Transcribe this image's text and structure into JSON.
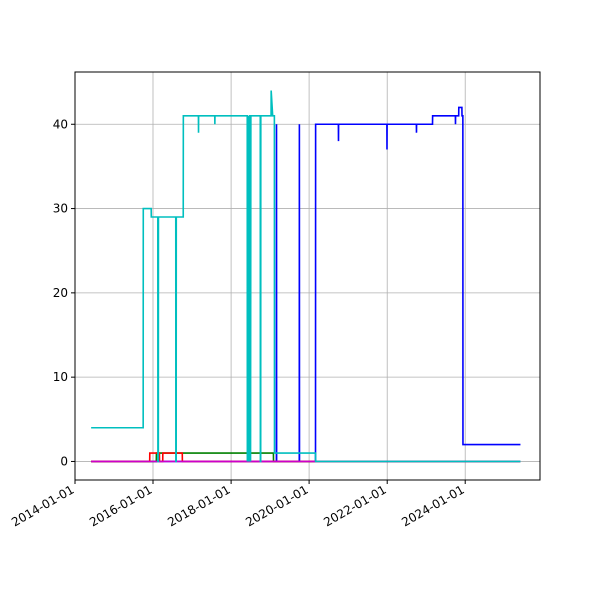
{
  "chart_data": {
    "type": "line",
    "title": "",
    "xlabel": "",
    "ylabel": "",
    "xlim": [
      "2014-01-01",
      "2025-12-01"
    ],
    "ylim": [
      -2.2,
      46.2
    ],
    "grid": true,
    "legend": "none",
    "x_ticks": [
      "2014-01-01",
      "2016-01-01",
      "2018-01-01",
      "2020-01-01",
      "2022-01-01",
      "2024-01-01"
    ],
    "y_ticks": [
      0,
      10,
      20,
      30,
      40
    ],
    "series": [
      {
        "color": "#0000ff",
        "points": [
          [
            "2014-06-01",
            0
          ],
          [
            "2019-03-01",
            0
          ],
          [
            "2019-03-02",
            40
          ],
          [
            "2019-03-03",
            0
          ],
          [
            "2019-10-01",
            0
          ],
          [
            "2019-10-02",
            40
          ],
          [
            "2019-10-03",
            0
          ],
          [
            "2020-03-01",
            0
          ],
          [
            "2020-03-02",
            40
          ],
          [
            "2020-10-01",
            40
          ],
          [
            "2020-10-02",
            38
          ],
          [
            "2020-10-03",
            40
          ],
          [
            "2021-12-29",
            40
          ],
          [
            "2021-12-30",
            37
          ],
          [
            "2021-12-31",
            40
          ],
          [
            "2022-10-01",
            40
          ],
          [
            "2022-10-02",
            39
          ],
          [
            "2022-10-03",
            40
          ],
          [
            "2023-03-01",
            40
          ],
          [
            "2023-03-02",
            41
          ],
          [
            "2023-10-01",
            41
          ],
          [
            "2023-10-02",
            40
          ],
          [
            "2023-10-03",
            41
          ],
          [
            "2023-11-01",
            41
          ],
          [
            "2023-11-02",
            42
          ],
          [
            "2023-12-01",
            42
          ],
          [
            "2023-12-02",
            41
          ],
          [
            "2023-12-10",
            41
          ],
          [
            "2023-12-11",
            2
          ],
          [
            "2025-06-01",
            2
          ]
        ]
      },
      {
        "color": "#008000",
        "points": [
          [
            "2014-06-01",
            0
          ],
          [
            "2016-02-01",
            0
          ],
          [
            "2016-02-02",
            1
          ],
          [
            "2019-02-01",
            1
          ],
          [
            "2019-02-02",
            0
          ],
          [
            "2025-06-01",
            0
          ]
        ]
      },
      {
        "color": "#ff0000",
        "points": [
          [
            "2014-06-01",
            0
          ],
          [
            "2015-12-01",
            0
          ],
          [
            "2015-12-02",
            1
          ],
          [
            "2016-03-01",
            1
          ],
          [
            "2016-03-02",
            0
          ],
          [
            "2016-04-01",
            0
          ],
          [
            "2016-04-02",
            1
          ],
          [
            "2016-10-01",
            1
          ],
          [
            "2016-10-02",
            0
          ],
          [
            "2025-06-01",
            0
          ]
        ]
      },
      {
        "color": "#cc00cc",
        "points": [
          [
            "2014-06-01",
            0
          ],
          [
            "2025-06-01",
            0
          ]
        ]
      },
      {
        "color": "#00bfbf",
        "points": [
          [
            "2014-06-01",
            4
          ],
          [
            "2015-10-01",
            4
          ],
          [
            "2015-10-02",
            30
          ],
          [
            "2015-12-15",
            30
          ],
          [
            "2015-12-16",
            29
          ],
          [
            "2016-02-15",
            29
          ],
          [
            "2016-02-16",
            0
          ],
          [
            "2016-02-20",
            0
          ],
          [
            "2016-02-21",
            29
          ],
          [
            "2016-08-01",
            29
          ],
          [
            "2016-08-02",
            0
          ],
          [
            "2016-08-05",
            0
          ],
          [
            "2016-08-06",
            29
          ],
          [
            "2016-10-10",
            29
          ],
          [
            "2016-10-11",
            41
          ],
          [
            "2017-03-01",
            41
          ],
          [
            "2017-03-02",
            39
          ],
          [
            "2017-03-03",
            41
          ],
          [
            "2017-08-01",
            41
          ],
          [
            "2017-08-02",
            40
          ],
          [
            "2017-08-03",
            41
          ],
          [
            "2018-06-01",
            41
          ],
          [
            "2018-06-02",
            0
          ],
          [
            "2018-06-05",
            41
          ],
          [
            "2018-06-08",
            0
          ],
          [
            "2018-06-11",
            41
          ],
          [
            "2018-06-14",
            0
          ],
          [
            "2018-06-17",
            41
          ],
          [
            "2018-06-20",
            0
          ],
          [
            "2018-06-23",
            41
          ],
          [
            "2018-07-01",
            41
          ],
          [
            "2018-07-02",
            0
          ],
          [
            "2018-07-05",
            41
          ],
          [
            "2018-10-01",
            41
          ],
          [
            "2018-10-02",
            0
          ],
          [
            "2018-10-05",
            0
          ],
          [
            "2018-10-06",
            41
          ],
          [
            "2019-01-10",
            41
          ],
          [
            "2019-01-11",
            44
          ],
          [
            "2019-01-25",
            41
          ],
          [
            "2019-02-10",
            41
          ],
          [
            "2019-02-11",
            1
          ],
          [
            "2020-03-01",
            1
          ],
          [
            "2020-03-02",
            0
          ],
          [
            "2025-06-01",
            0
          ]
        ]
      }
    ]
  }
}
